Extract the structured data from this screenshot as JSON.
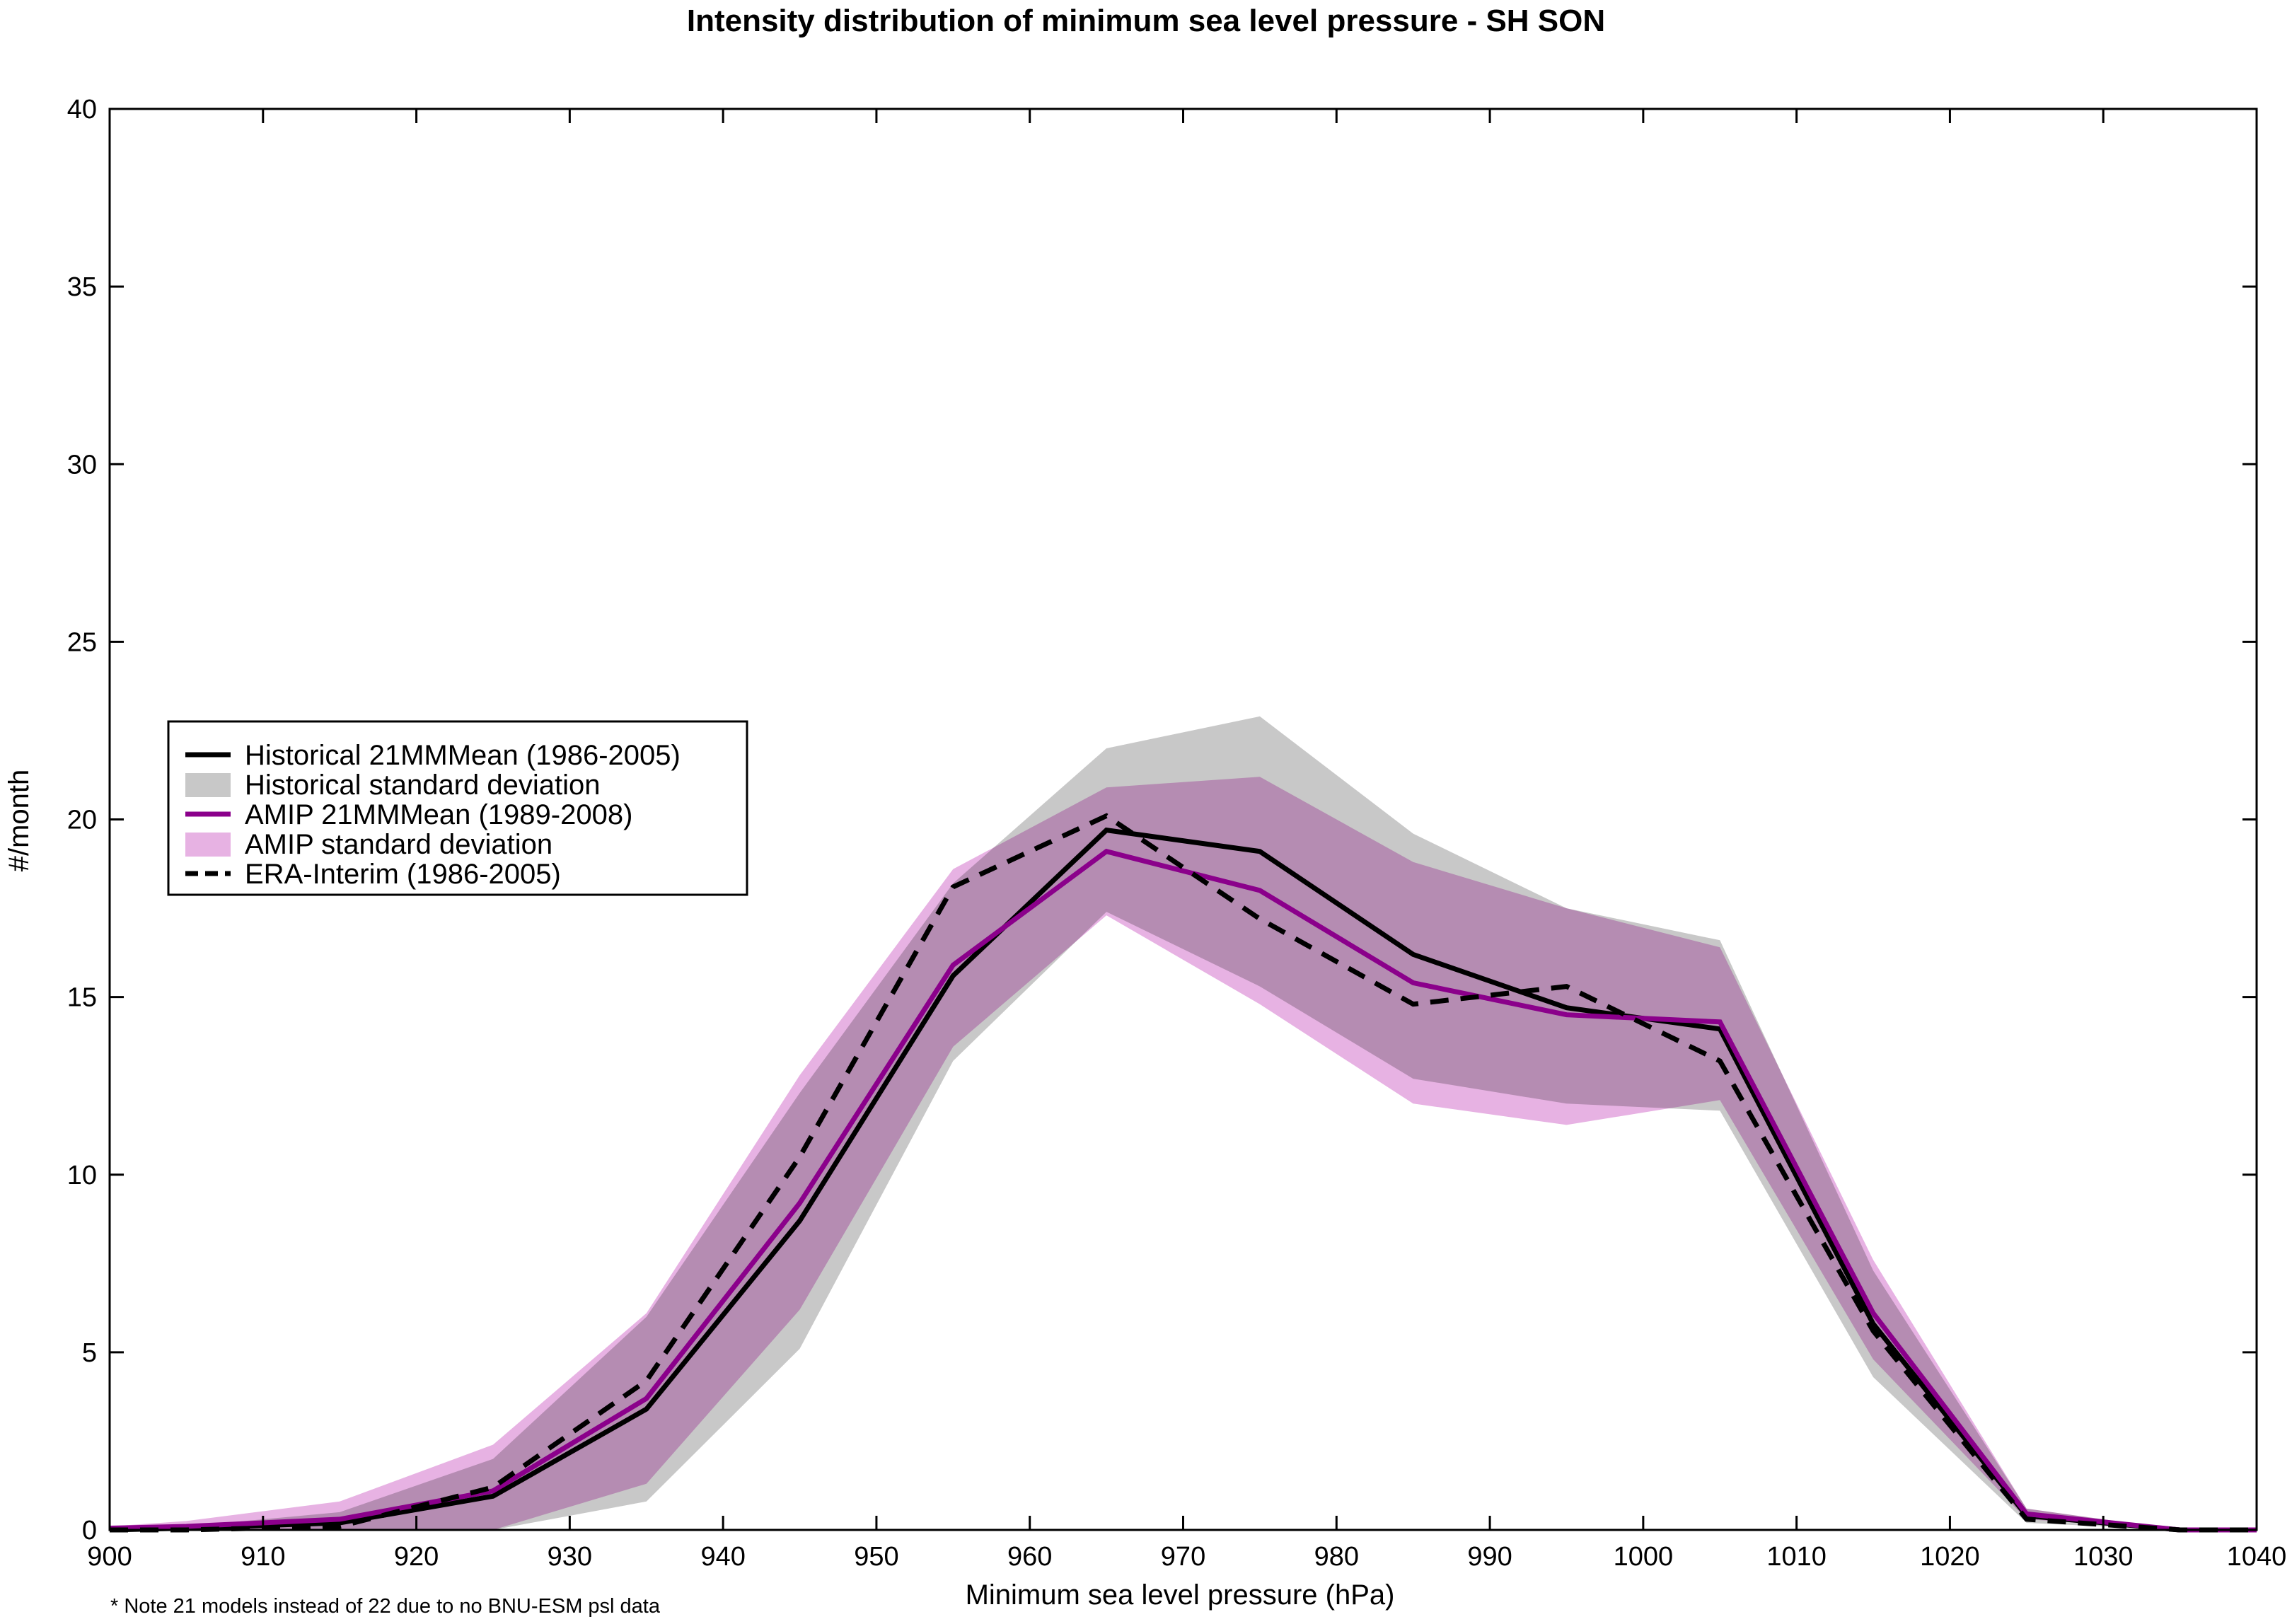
{
  "chart_data": {
    "type": "line",
    "title": "Intensity distribution of minimum sea level pressure - SH SON",
    "xlabel": "Minimum sea level pressure (hPa)",
    "ylabel": "#/month",
    "xlim": [
      900,
      1040
    ],
    "ylim": [
      0,
      40
    ],
    "xticks": [
      900,
      910,
      920,
      930,
      940,
      950,
      960,
      970,
      980,
      990,
      1000,
      1010,
      1020,
      1030,
      1040
    ],
    "yticks": [
      0,
      5,
      10,
      15,
      20,
      25,
      30,
      35,
      40
    ],
    "grid": false,
    "legend_position": "middle-left",
    "note": "* Note 21 models instead of 22 due to no BNU-ESM psl data",
    "x": [
      900,
      905,
      915,
      925,
      935,
      945,
      955,
      965,
      975,
      985,
      995,
      1005,
      1015,
      1025,
      1035,
      1040
    ],
    "series": [
      {
        "name": "Historical 21MMMean (1986-2005)",
        "kind": "line",
        "style": "solid",
        "color": "#000000",
        "values": [
          0.0,
          0.05,
          0.2,
          0.95,
          3.4,
          8.7,
          15.6,
          19.7,
          19.1,
          16.2,
          14.7,
          14.1,
          5.8,
          0.4,
          0.0,
          0.0
        ]
      },
      {
        "name": "Historical standard deviation",
        "kind": "band",
        "color": "#c8c8c8",
        "lower": [
          0.0,
          0.0,
          0.0,
          0.0,
          0.8,
          5.1,
          13.2,
          17.4,
          15.3,
          12.7,
          12.0,
          11.8,
          4.3,
          0.2,
          0.0,
          0.0
        ],
        "upper": [
          0.05,
          0.1,
          0.5,
          2.0,
          6.0,
          12.3,
          18.2,
          22.0,
          22.9,
          19.6,
          17.5,
          16.6,
          7.3,
          0.6,
          0.0,
          0.0
        ]
      },
      {
        "name": "AMIP 21MMMean (1989-2008)",
        "kind": "line",
        "style": "solid",
        "color": "#8b008b",
        "values": [
          0.05,
          0.1,
          0.3,
          1.1,
          3.7,
          9.2,
          15.9,
          19.1,
          18.0,
          15.4,
          14.5,
          14.3,
          6.1,
          0.45,
          0.0,
          0.0
        ]
      },
      {
        "name": "AMIP standard deviation",
        "kind": "band",
        "color": "#e7b2e3",
        "lower": [
          0.0,
          0.0,
          0.0,
          0.0,
          1.3,
          6.2,
          13.6,
          17.3,
          14.8,
          12.0,
          11.4,
          12.1,
          4.8,
          0.3,
          0.0,
          0.0
        ],
        "upper": [
          0.1,
          0.25,
          0.8,
          2.4,
          6.1,
          12.8,
          18.6,
          20.9,
          21.2,
          18.8,
          17.5,
          16.4,
          7.6,
          0.6,
          0.0,
          0.0
        ]
      },
      {
        "name": "ERA-Interim (1986-2005)",
        "kind": "line",
        "style": "dashed",
        "color": "#000000",
        "values": [
          0.0,
          0.0,
          0.1,
          1.2,
          4.2,
          10.5,
          18.1,
          20.1,
          17.2,
          14.8,
          15.3,
          13.2,
          5.6,
          0.3,
          0.0,
          0.0
        ]
      }
    ]
  }
}
